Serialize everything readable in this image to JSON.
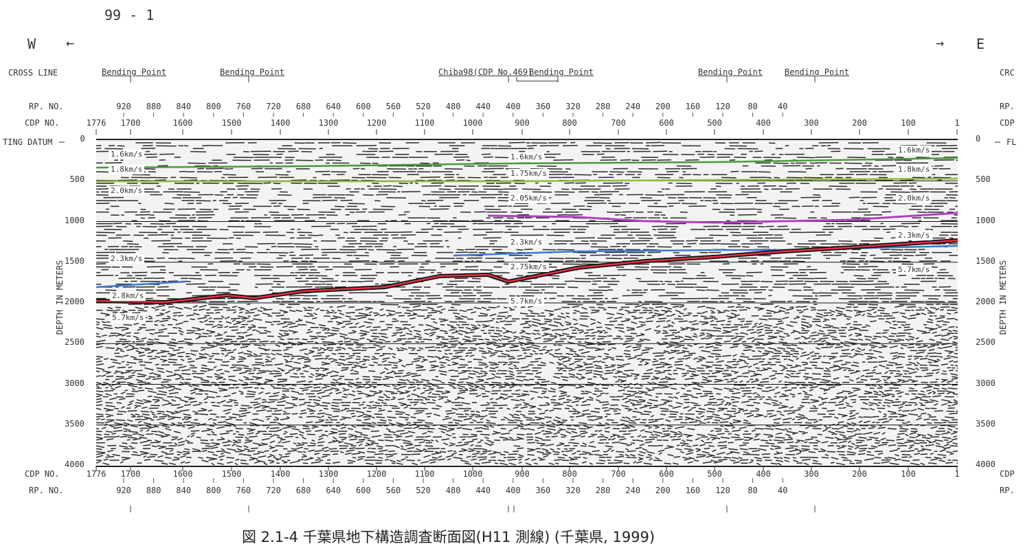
{
  "figure_no": "99 - 1",
  "west": "W",
  "west_arrow": "←",
  "east": "E",
  "east_arrow": "→",
  "left_labels": {
    "cross_line": "CROSS LINE",
    "rp_no": "RP. NO.",
    "cdp_no": "CDP NO.",
    "datum": "TING DATUM"
  },
  "right_labels": {
    "cross_line": "CRC",
    "rp_no": "RP.",
    "cdp_no": "CDP",
    "datum": "FL"
  },
  "crossline_marks": [
    "Bending Point",
    "Bending Point",
    "Chiba98(CDP No.469)",
    "Bending Point",
    "Bending Point",
    "Bending Point"
  ],
  "rp_ticks": [
    "920",
    "880",
    "840",
    "800",
    "760",
    "720",
    "680",
    "640",
    "600",
    "560",
    "520",
    "480",
    "440",
    "400",
    "360",
    "320",
    "280",
    "240",
    "200",
    "160",
    "120",
    "80",
    "40"
  ],
  "cdp_ticks": [
    "1776",
    "1700",
    "1600",
    "1500",
    "1400",
    "1300",
    "1200",
    "1100",
    "1000",
    "900",
    "800",
    "700",
    "600",
    "500",
    "400",
    "300",
    "200",
    "100",
    "1"
  ],
  "depth_ticks": [
    "0",
    "500",
    "1000",
    "1500",
    "2000",
    "2500",
    "3000",
    "3500",
    "4000"
  ],
  "depth_axis_label": "DEPTH IN METERS",
  "velocity_labels": {
    "west": [
      "1.6km/s",
      "1.8km/s",
      "2.0km/s",
      "2.3km/s",
      "2.8km/s",
      "5.7km/s"
    ],
    "center": [
      "1.6km/s",
      "1.75km/s",
      "2.05km/s",
      "2.3km/s",
      "2.75km/s",
      "5.7km/s"
    ],
    "east": [
      "1.6km/s",
      "1.8km/s",
      "2.0km/s",
      "2.3km/s",
      "5.7km/s"
    ]
  },
  "horizon_colors": {
    "green": "#4a9a3a",
    "lightgreen": "#8fbf3a",
    "magenta": "#b040c0",
    "blue": "#3a78d8",
    "red": "#e8304a"
  },
  "caption": "図 2.1-4 千葉県地下構造調査断面図(H11 測線) (千葉県, 1999)"
}
